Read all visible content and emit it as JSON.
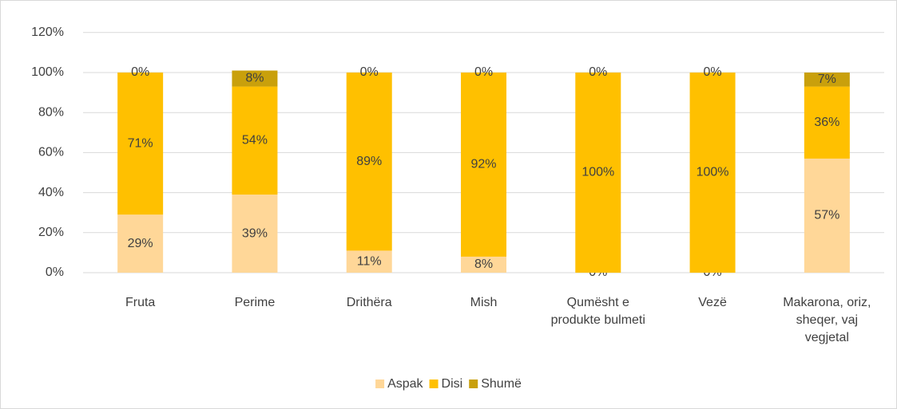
{
  "chart_data": {
    "type": "stacked_bar",
    "categories": [
      "Fruta",
      "Perime",
      "Drithëra",
      "Mish",
      "Qumësht e produkte bulmeti",
      "Vezë",
      "Makarona, oriz, sheqer, vaj vegjetal"
    ],
    "series": [
      {
        "name": "Aspak",
        "color": "#ffd798",
        "values": [
          29,
          39,
          11,
          8,
          0,
          0,
          57
        ],
        "value_labels": [
          "29%",
          "39%",
          "11%",
          "8%",
          "0%",
          "0%",
          "57%"
        ]
      },
      {
        "name": "Disi",
        "color": "#ffc000",
        "values": [
          71,
          54,
          89,
          92,
          100,
          100,
          36
        ],
        "value_labels": [
          "71%",
          "54%",
          "89%",
          "92%",
          "100%",
          "100%",
          "36%"
        ]
      },
      {
        "name": "Shumë",
        "color": "#c9a00c",
        "values": [
          0,
          8,
          0,
          0,
          0,
          0,
          7
        ],
        "value_labels": [
          "0%",
          "8%",
          "0%",
          "0%",
          "0%",
          "0%",
          "7%"
        ]
      }
    ],
    "ylim": [
      0,
      120
    ],
    "yticks": [
      {
        "value": 0,
        "label": "0%"
      },
      {
        "value": 20,
        "label": "20%"
      },
      {
        "value": 40,
        "label": "40%"
      },
      {
        "value": 60,
        "label": "60%"
      },
      {
        "value": 80,
        "label": "80%"
      },
      {
        "value": 100,
        "label": "100%"
      },
      {
        "value": 120,
        "label": "120%"
      }
    ],
    "grid": true,
    "legend": "bottom"
  }
}
